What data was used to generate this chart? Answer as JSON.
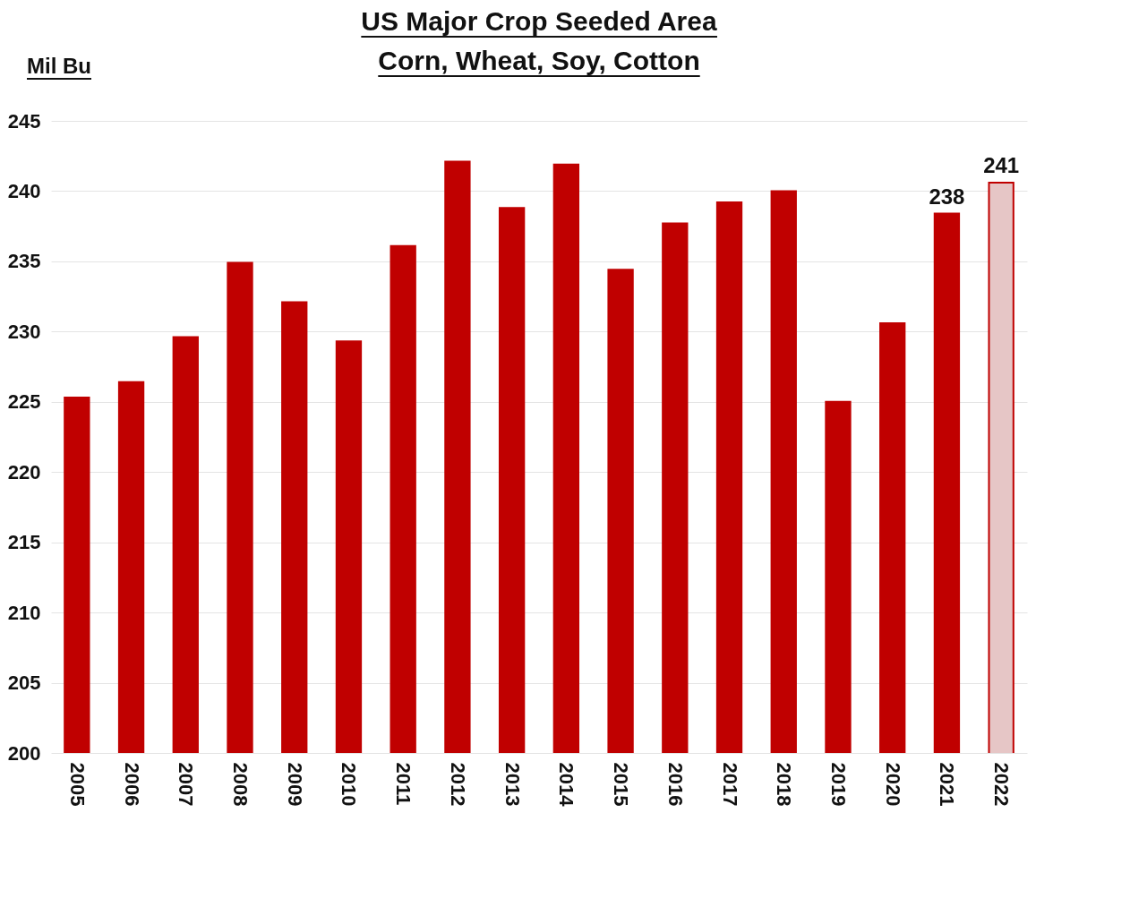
{
  "chart_data": {
    "type": "bar",
    "title": "US Major Crop Seeded Area",
    "subtitle": "Corn, Wheat, Soy, Cotton",
    "ylabel": "Mil Bu",
    "categories": [
      "2005",
      "2006",
      "2007",
      "2008",
      "2009",
      "2010",
      "2011",
      "2012",
      "2013",
      "2014",
      "2015",
      "2016",
      "2017",
      "2018",
      "2019",
      "2020",
      "2021",
      "2022"
    ],
    "values": [
      225.3,
      226.4,
      229.6,
      234.9,
      232.1,
      229.3,
      236.1,
      242.1,
      238.8,
      241.9,
      234.4,
      237.7,
      239.2,
      240.0,
      225.0,
      230.6,
      238.4,
      240.6
    ],
    "colors": [
      "#c00000",
      "#c00000",
      "#c00000",
      "#c00000",
      "#c00000",
      "#c00000",
      "#c00000",
      "#c00000",
      "#c00000",
      "#c00000",
      "#c00000",
      "#c00000",
      "#c00000",
      "#c00000",
      "#c00000",
      "#c00000",
      "#c00000",
      "#e6c6c6"
    ],
    "value_labels": [
      null,
      null,
      null,
      null,
      null,
      null,
      null,
      null,
      null,
      null,
      null,
      null,
      null,
      null,
      null,
      null,
      "238",
      "241"
    ],
    "ylim": [
      200,
      245
    ],
    "yticks": [
      200,
      205,
      210,
      215,
      220,
      225,
      230,
      235,
      240,
      245
    ],
    "grid": "y"
  }
}
